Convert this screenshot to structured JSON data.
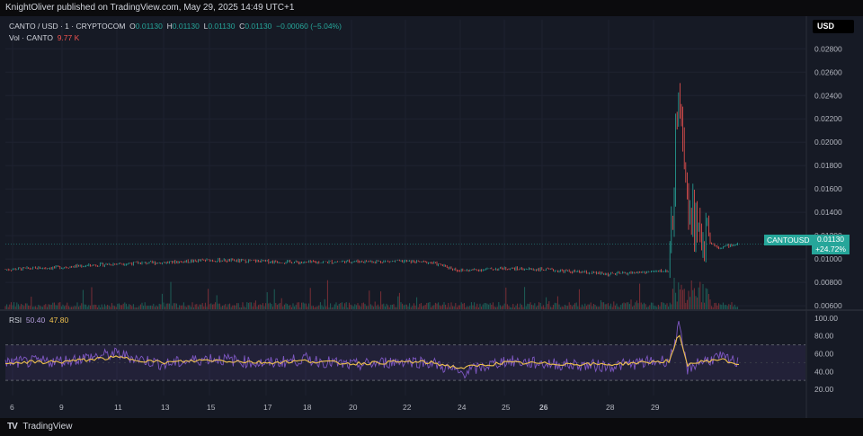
{
  "header": {
    "publisher_text": "KnightOliver published on TradingView.com, May 29, 2025 14:49 UTC+1"
  },
  "legend": {
    "symbol": "CANTO / USD · 1 · CRYPTOCOM",
    "o_label": "O",
    "o_value": "0.01130",
    "h_label": "H",
    "h_value": "0.01130",
    "l_label": "L",
    "l_value": "0.01130",
    "c_label": "C",
    "c_value": "0.01130",
    "change": "−0.00060 (−5.04%)"
  },
  "volume": {
    "label": "Vol · CANTO",
    "value": "9.77 K"
  },
  "rsi": {
    "label": "RSI",
    "value1": "50.40",
    "value2": "47.80"
  },
  "currency_button": "USD",
  "last_price": {
    "ticker": "CANTOUSD",
    "price": "0.01130",
    "change": "+24.72%"
  },
  "footer": {
    "brand": "TradingView",
    "logo_glyph": "TV"
  },
  "colors": {
    "up": "#26a69a",
    "down": "#ef5350",
    "rsi_line": "#7e57c2",
    "rsi_ma": "#f0c24e",
    "bg": "#161a25"
  },
  "chart_data": [
    {
      "type": "line",
      "description_of_series": "CANTO/USD price (1-minute candles)",
      "x_tick_labels": [
        "6",
        "9",
        "11",
        "13",
        "15",
        "17",
        "18",
        "20",
        "22",
        "24",
        "25",
        "26",
        "28",
        "29"
      ],
      "y_tick_labels": [
        "0.02800",
        "0.02600",
        "0.02400",
        "0.02200",
        "0.02000",
        "0.01800",
        "0.01600",
        "0.01400",
        "0.01200",
        "0.01000",
        "0.00800",
        "0.00600"
      ],
      "ylim": [
        0.0057,
        0.0291
      ],
      "x": [
        "6",
        "9",
        "11",
        "13",
        "15",
        "17",
        "18",
        "20",
        "22",
        "23",
        "24",
        "25",
        "26",
        "28",
        "29",
        "29.3",
        "29.6",
        "29.8",
        "30",
        "30.3"
      ],
      "values": [
        0.0091,
        0.0093,
        0.0096,
        0.0097,
        0.0099,
        0.0098,
        0.0097,
        0.0098,
        0.0098,
        0.0097,
        0.009,
        0.0092,
        0.0091,
        0.0087,
        0.009,
        0.026,
        0.016,
        0.012,
        0.011,
        0.0113
      ],
      "last_value": 0.0113
    },
    {
      "type": "line",
      "description_of_series": "RSI and its moving average",
      "y_tick_labels": [
        "100.00",
        "80.00",
        "60.00",
        "40.00",
        "20.00"
      ],
      "ylim": [
        13,
        104
      ],
      "bands": [
        30,
        70
      ],
      "x": [
        "6",
        "9",
        "11",
        "13",
        "15",
        "17",
        "18",
        "20",
        "22",
        "23",
        "24",
        "25",
        "26",
        "28",
        "29",
        "29.3",
        "29.6",
        "29.8",
        "30",
        "30.3"
      ],
      "values": [
        50,
        52,
        60,
        48,
        55,
        49,
        54,
        47,
        52,
        50,
        38,
        52,
        49,
        46,
        53,
        90,
        42,
        50,
        56,
        50
      ],
      "ma_values": [
        50,
        51,
        56,
        50,
        53,
        50,
        52,
        49,
        51,
        50,
        44,
        50,
        49,
        48,
        52,
        82,
        48,
        50,
        54,
        48
      ]
    }
  ]
}
